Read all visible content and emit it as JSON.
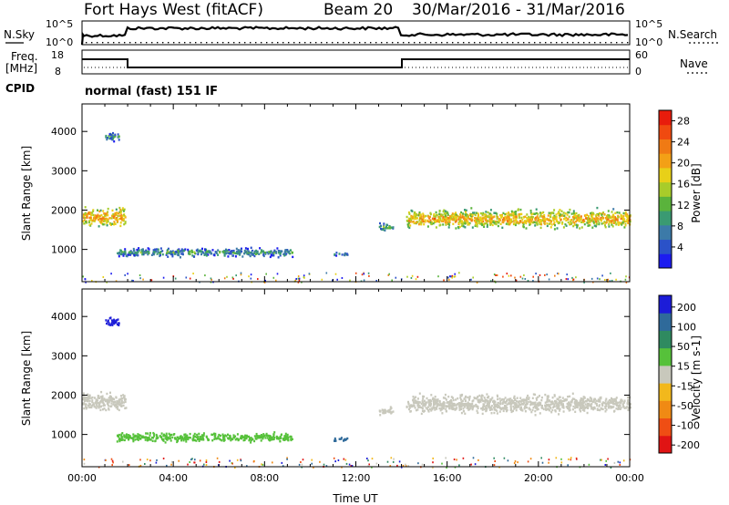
{
  "header": {
    "station": "Fort Hays West (fitACF)",
    "beam": "Beam 20",
    "date_range": "30/Mar/2016 - 31/Mar/2016"
  },
  "top_panels": {
    "nsky_label": "N.Sky",
    "nsky_ticks": [
      "10^5",
      "10^0"
    ],
    "nsearch_label": "N.Search",
    "nsearch_ticks": [
      "10^5",
      "10^0"
    ],
    "freq_label_1": "Freq.",
    "freq_label_2": "[MHz]",
    "freq_ticks": [
      "18",
      "8"
    ],
    "nave_label": "Nave",
    "nave_ticks": [
      "60",
      "0"
    ],
    "cpid_label": "CPID",
    "cpid_value": "normal (fast) 151 IF"
  },
  "colors": {
    "power": [
      "#1c1cf0",
      "#2b52c8",
      "#3c7aa8",
      "#3a9a72",
      "#5ab33c",
      "#a8cc2a",
      "#e8d018",
      "#f3a016",
      "#f07a14",
      "#f04a10",
      "#e81c0c"
    ],
    "velocity": [
      "#1c1cd8",
      "#2f6a9a",
      "#2f8a60",
      "#56c13a",
      "#c8c8bc",
      "#f2b81c",
      "#f08a14",
      "#ef4e14",
      "#e01414"
    ]
  },
  "chart_data": [
    {
      "type": "heatmap",
      "title": "Power",
      "xlabel": "",
      "ylabel": "Slant Range [km]",
      "x_ticks": [
        "00:00",
        "04:00",
        "08:00",
        "12:00",
        "16:00",
        "20:00",
        "00:00"
      ],
      "xlim_hours": [
        0,
        24
      ],
      "y_ticks": [
        "1000",
        "2000",
        "3000",
        "4000"
      ],
      "ylim_km": [
        180,
        4700
      ],
      "colorbar_label": "Power [dB]",
      "colorbar_ticks": [
        "4",
        "8",
        "12",
        "16",
        "20",
        "24",
        "28"
      ],
      "colorbar_range": [
        0,
        30
      ],
      "features": [
        {
          "t_start": 0.0,
          "t_end": 1.9,
          "r_center": 1850,
          "r_width": 600,
          "value": 22
        },
        {
          "t_start": 1.0,
          "t_end": 1.6,
          "r_center": 3900,
          "r_width": 300,
          "value": 10
        },
        {
          "t_start": 1.5,
          "t_end": 9.2,
          "r_center": 950,
          "r_width": 300,
          "value": 10
        },
        {
          "t_start": 11.0,
          "t_end": 11.6,
          "r_center": 900,
          "r_width": 150,
          "value": 8
        },
        {
          "t_start": 13.0,
          "t_end": 13.6,
          "r_center": 1600,
          "r_width": 300,
          "value": 11
        },
        {
          "t_start": 14.2,
          "t_end": 24.0,
          "r_center": 1800,
          "r_width": 600,
          "value": 21
        }
      ]
    },
    {
      "type": "heatmap",
      "title": "Velocity",
      "xlabel": "Time UT",
      "ylabel": "Slant Range [km]",
      "x_ticks": [
        "00:00",
        "04:00",
        "08:00",
        "12:00",
        "16:00",
        "20:00",
        "00:00"
      ],
      "xlim_hours": [
        0,
        24
      ],
      "y_ticks": [
        "1000",
        "2000",
        "3000",
        "4000"
      ],
      "ylim_km": [
        180,
        4700
      ],
      "colorbar_label": "Velocity [m s-1]",
      "colorbar_ticks": [
        "200",
        "100",
        "50",
        "15",
        "-15",
        "-50",
        "-100",
        "-200"
      ],
      "colorbar_range": [
        -250,
        250
      ],
      "features": [
        {
          "t_start": 0.0,
          "t_end": 1.9,
          "r_center": 1850,
          "r_width": 600,
          "value": 0
        },
        {
          "t_start": 1.0,
          "t_end": 1.6,
          "r_center": 3900,
          "r_width": 300,
          "value": 230
        },
        {
          "t_start": 1.5,
          "t_end": 9.2,
          "r_center": 950,
          "r_width": 300,
          "value": 30
        },
        {
          "t_start": 11.0,
          "t_end": 11.6,
          "r_center": 900,
          "r_width": 150,
          "value": 80
        },
        {
          "t_start": 13.0,
          "t_end": 13.6,
          "r_center": 1600,
          "r_width": 300,
          "value": 0
        },
        {
          "t_start": 14.2,
          "t_end": 24.0,
          "r_center": 1800,
          "r_width": 600,
          "value": 0
        }
      ]
    }
  ]
}
